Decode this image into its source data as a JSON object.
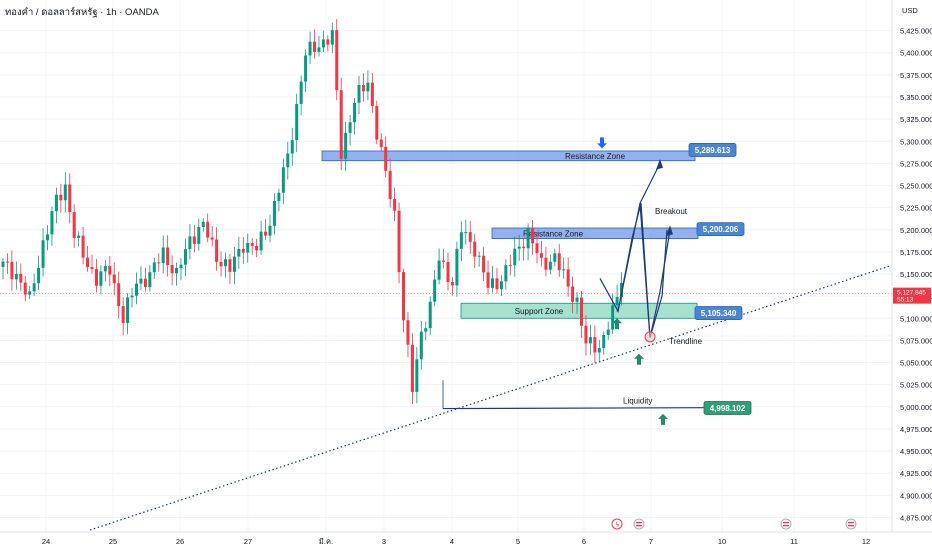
{
  "header": {
    "symbol_title": "ทองคำ / ดอลลาร์สหรัฐ · 1h · OANDA"
  },
  "colors": {
    "up": "#089981",
    "down": "#f23645",
    "zone_blue": "#6f97e8",
    "zone_blue_border": "#2c5fc7",
    "zone_green": "#5cc7a7",
    "navy": "#1f3a78",
    "badge_blue": "#4a86cf",
    "badge_green": "#2f9e79",
    "arrow_blue": "#2962ff",
    "arrow_green": "#1e8f6a",
    "price_red": "#f23645"
  },
  "chart_data": {
    "type": "candlestick",
    "y_axis": {
      "unit": "USD",
      "range": [
        4860,
        5440
      ],
      "ticks": [
        4875,
        4900,
        4925,
        4950,
        4975,
        5000,
        5025,
        5050,
        5075,
        5100,
        5125,
        5150,
        5175,
        5200,
        5225,
        5250,
        5275,
        5300,
        5325,
        5350,
        5375,
        5400,
        5425
      ],
      "tick_labels": [
        "4,875.000",
        "4,900.000",
        "4,925.000",
        "4,950.000",
        "4,975.000",
        "5,000.000",
        "5,025.000",
        "5,050.000",
        "5,075.000",
        "5,100.000",
        "5,125.000",
        "5,150.000",
        "5,175.000",
        "5,200.000",
        "5,225.000",
        "5,250.000",
        "5,275.000",
        "5,300.000",
        "5,325.000",
        "5,350.000",
        "5,375.000",
        "5,400.000",
        "5,425.000"
      ]
    },
    "x_axis": {
      "labels": [
        "24",
        "25",
        "26",
        "27",
        "มี.ค.",
        "3",
        "4",
        "5",
        "6",
        "7",
        "10",
        "11",
        "12"
      ]
    },
    "current_price": {
      "value": 5127.845,
      "label": "5,127.845",
      "countdown": "55:13"
    },
    "reference_price": 5080,
    "price_waypoints": [
      [
        0,
        5160
      ],
      [
        3,
        5150
      ],
      [
        6,
        5120
      ],
      [
        9,
        5185
      ],
      [
        12,
        5232
      ],
      [
        14,
        5250
      ],
      [
        16,
        5195
      ],
      [
        18,
        5170
      ],
      [
        21,
        5145
      ],
      [
        24,
        5155
      ],
      [
        27,
        5100
      ],
      [
        30,
        5140
      ],
      [
        33,
        5148
      ],
      [
        36,
        5175
      ],
      [
        39,
        5148
      ],
      [
        42,
        5190
      ],
      [
        45,
        5205
      ],
      [
        48,
        5170
      ],
      [
        51,
        5155
      ],
      [
        54,
        5185
      ],
      [
        57,
        5178
      ],
      [
        60,
        5210
      ],
      [
        64,
        5282
      ],
      [
        68,
        5398
      ],
      [
        71,
        5410
      ],
      [
        74,
        5418
      ],
      [
        76,
        5288
      ],
      [
        79,
        5345
      ],
      [
        82,
        5368
      ],
      [
        84,
        5310
      ],
      [
        86,
        5262
      ],
      [
        88,
        5218
      ],
      [
        90,
        5100
      ],
      [
        92,
        5020
      ],
      [
        94,
        5085
      ],
      [
        96,
        5112
      ],
      [
        98,
        5168
      ],
      [
        101,
        5140
      ],
      [
        103,
        5200
      ],
      [
        106,
        5180
      ],
      [
        109,
        5135
      ],
      [
        112,
        5145
      ],
      [
        115,
        5172
      ],
      [
        118,
        5198
      ],
      [
        121,
        5160
      ],
      [
        124,
        5170
      ],
      [
        127,
        5135
      ],
      [
        129,
        5120
      ],
      [
        131,
        5070
      ],
      [
        134,
        5068
      ],
      [
        137,
        5105
      ],
      [
        139,
        5140
      ]
    ],
    "zones": [
      {
        "name": "Resistance Zone",
        "top": 5289,
        "bottom": 5278,
        "style": "resistance"
      },
      {
        "name": "Resistance Zone",
        "top": 5202,
        "bottom": 5190,
        "style": "resistance"
      },
      {
        "name": "Support Zone",
        "top": 5117,
        "bottom": 5100,
        "style": "support"
      }
    ],
    "levels": [
      {
        "label": "5,289.613",
        "value": 5289.613,
        "style": "blue"
      },
      {
        "label": "5,200.206",
        "value": 5200.206,
        "style": "blue"
      },
      {
        "label": "5,105.340",
        "value": 5105.34,
        "style": "blue"
      },
      {
        "label": "4,998.102",
        "value": 4998.102,
        "style": "green"
      }
    ],
    "annotations": {
      "breakout": "Breakout",
      "trendline": "Trendline",
      "liquidity": "Liquidity"
    }
  }
}
